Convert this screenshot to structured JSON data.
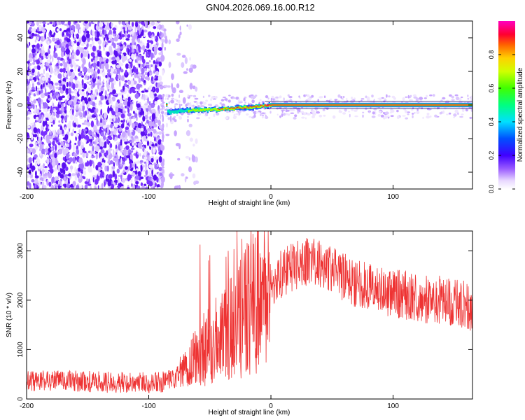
{
  "title": "GN04.2026.069.16.00.R12",
  "chart_data": [
    {
      "type": "heatmap",
      "xlabel": "Height of straight line (km)",
      "ylabel": "Frequency (Hz)",
      "xlim": [
        -200,
        165
      ],
      "ylim": [
        -50,
        50
      ],
      "x_ticks": [
        -200,
        -100,
        0,
        100
      ],
      "y_ticks": [
        -40,
        -20,
        0,
        20,
        40
      ],
      "colorbar": {
        "label": "Normalized spectral amplitude",
        "range": [
          0,
          1
        ],
        "ticks": [
          "0.0",
          "0.2",
          "0.4",
          "0.6",
          "0.8"
        ]
      },
      "description_values": {
        "noise_region_x": [
          -200,
          -60
        ],
        "signal_trace": [
          {
            "x": -85,
            "freq": -4,
            "amp": 0.25
          },
          {
            "x": -60,
            "freq": -3,
            "amp": 0.55
          },
          {
            "x": -40,
            "freq": -2.5,
            "amp": 0.75
          },
          {
            "x": -20,
            "freq": -1.5,
            "amp": 0.85
          },
          {
            "x": 0,
            "freq": 0,
            "amp": 0.95
          },
          {
            "x": 100,
            "freq": 0,
            "amp": 0.98
          },
          {
            "x": 165,
            "freq": 0,
            "amp": 0.98
          }
        ]
      }
    },
    {
      "type": "line",
      "xlabel": "Height of straight line (km)",
      "ylabel": "SNR (10 * v/v)",
      "xlim": [
        -200,
        165
      ],
      "ylim": [
        0,
        3400
      ],
      "x_ticks": [
        -200,
        -100,
        0,
        100
      ],
      "y_ticks": [
        0,
        1000,
        2000,
        3000
      ],
      "color": "#ee3333",
      "series": [
        {
          "x": [
            -200,
            -180,
            -160,
            -140,
            -120,
            -100,
            -90,
            -80,
            -70,
            -60,
            -50,
            -40,
            -30,
            -20,
            -10,
            0,
            10,
            20,
            30,
            40,
            50,
            60,
            70,
            80,
            90,
            100,
            110,
            120,
            130,
            140,
            150,
            160,
            165
          ],
          "values": [
            350,
            380,
            360,
            340,
            330,
            340,
            330,
            380,
            600,
            900,
            1100,
            1300,
            1500,
            1800,
            2100,
            2300,
            2550,
            2700,
            2800,
            2750,
            2600,
            2450,
            2350,
            2300,
            2200,
            2150,
            2100,
            2050,
            2000,
            2000,
            1950,
            1900,
            1850
          ]
        }
      ]
    }
  ]
}
